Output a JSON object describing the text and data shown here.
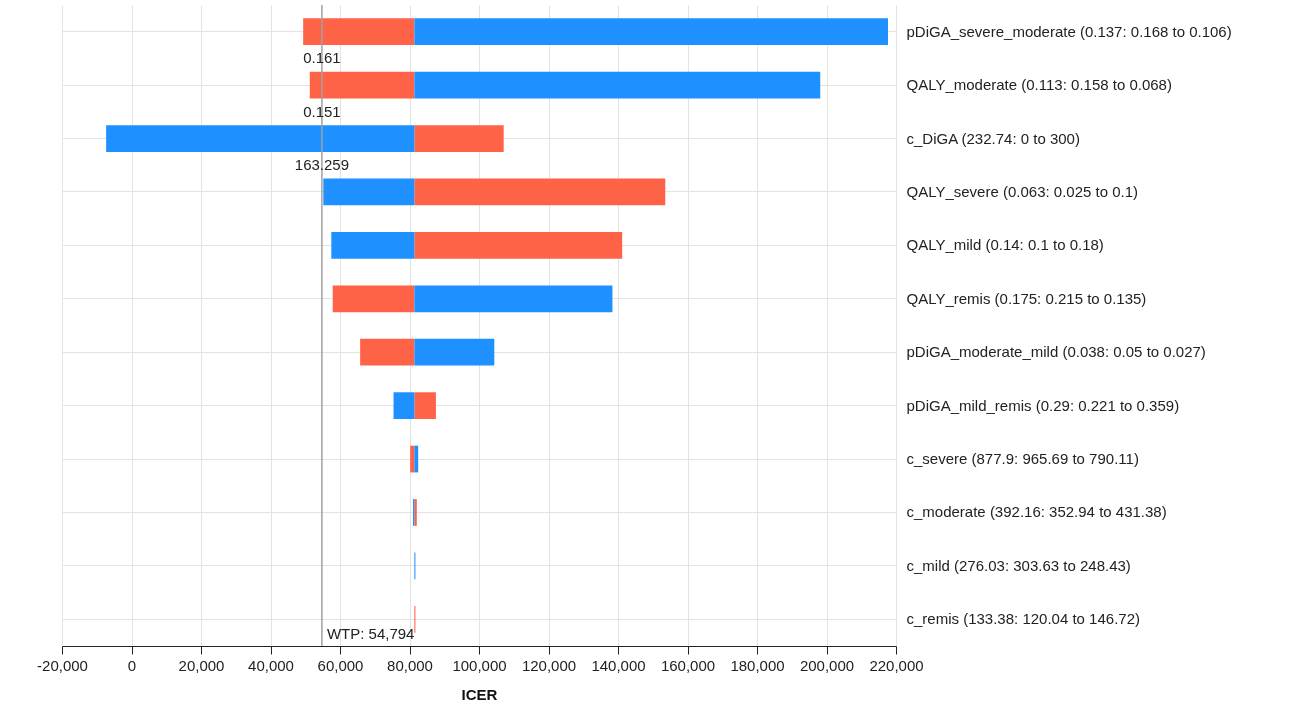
{
  "chart_data": {
    "type": "bar",
    "orientation": "horizontal",
    "xlabel": "ICER",
    "categories": [
      "pDiGA_severe_moderate (0.137: 0.168 to 0.106)",
      "QALY_moderate (0.113: 0.158 to 0.068)",
      "c_DiGA (232.74: 0 to 300)",
      "QALY_severe (0.063: 0.025 to 0.1)",
      "QALY_mild (0.14: 0.1 to 0.18)",
      "QALY_remis (0.175: 0.215 to 0.135)",
      "pDiGA_moderate_mild (0.038: 0.05 to 0.027)",
      "pDiGA_mild_remis (0.29: 0.221 to 0.359)",
      "c_severe (877.9: 965.69 to 790.11)",
      "c_moderate (392.16: 352.94 to 431.38)",
      "c_mild (276.03: 303.63 to 248.43)",
      "c_remis (133.38: 120.04 to 146.72)"
    ],
    "series": [
      {
        "color": "#ff6347",
        "base": [
          81400,
          81400,
          81400,
          81400,
          81400,
          81400,
          81400,
          81400,
          81400,
          81400,
          null,
          81400
        ],
        "values": [
          -32000,
          -30100,
          25700,
          72200,
          59800,
          -23500,
          -15600,
          6200,
          -1200,
          700,
          null,
          300
        ]
      },
      {
        "color": "#1e90ff",
        "base": [
          81400,
          81400,
          81400,
          81400,
          81400,
          81400,
          81400,
          81400,
          81400,
          81400,
          81400,
          null
        ],
        "values": [
          136300,
          116800,
          -88700,
          -26200,
          -23900,
          57000,
          23000,
          -6000,
          1100,
          -400,
          300,
          null
        ]
      }
    ],
    "xlim": [
      -20000,
      220000
    ],
    "xticks": [
      {
        "value": -20000,
        "label": "-20,000"
      },
      0,
      {
        "value": 20000,
        "label": "20,000"
      },
      {
        "value": 40000,
        "label": "40,000"
      },
      {
        "value": 60000,
        "label": "60,000"
      },
      {
        "value": 80000,
        "label": "80,000"
      },
      {
        "value": 100000,
        "label": "100,000"
      },
      {
        "value": 120000,
        "label": "120,000"
      },
      {
        "value": 140000,
        "label": "140,000"
      },
      {
        "value": 160000,
        "label": "160,000"
      },
      {
        "value": 180000,
        "label": "180,000"
      },
      {
        "value": 200000,
        "label": "200,000"
      },
      {
        "value": 220000,
        "label": "220,000"
      }
    ],
    "ref_lines": [
      {
        "axis": "x",
        "value": 54794,
        "label": "WTP: 54,794",
        "color": "#a0a0a0"
      }
    ],
    "annotations": [
      {
        "text": "0.161",
        "y": "QALY_moderate (0.113: 0.158 to 0.068)"
      },
      {
        "text": "0.151",
        "y": "c_DiGA (232.74: 0 to 300)"
      },
      {
        "text": "163.259",
        "y": "QALY_severe (0.063: 0.025 to 0.1)"
      }
    ],
    "grid": true,
    "legend": false
  }
}
